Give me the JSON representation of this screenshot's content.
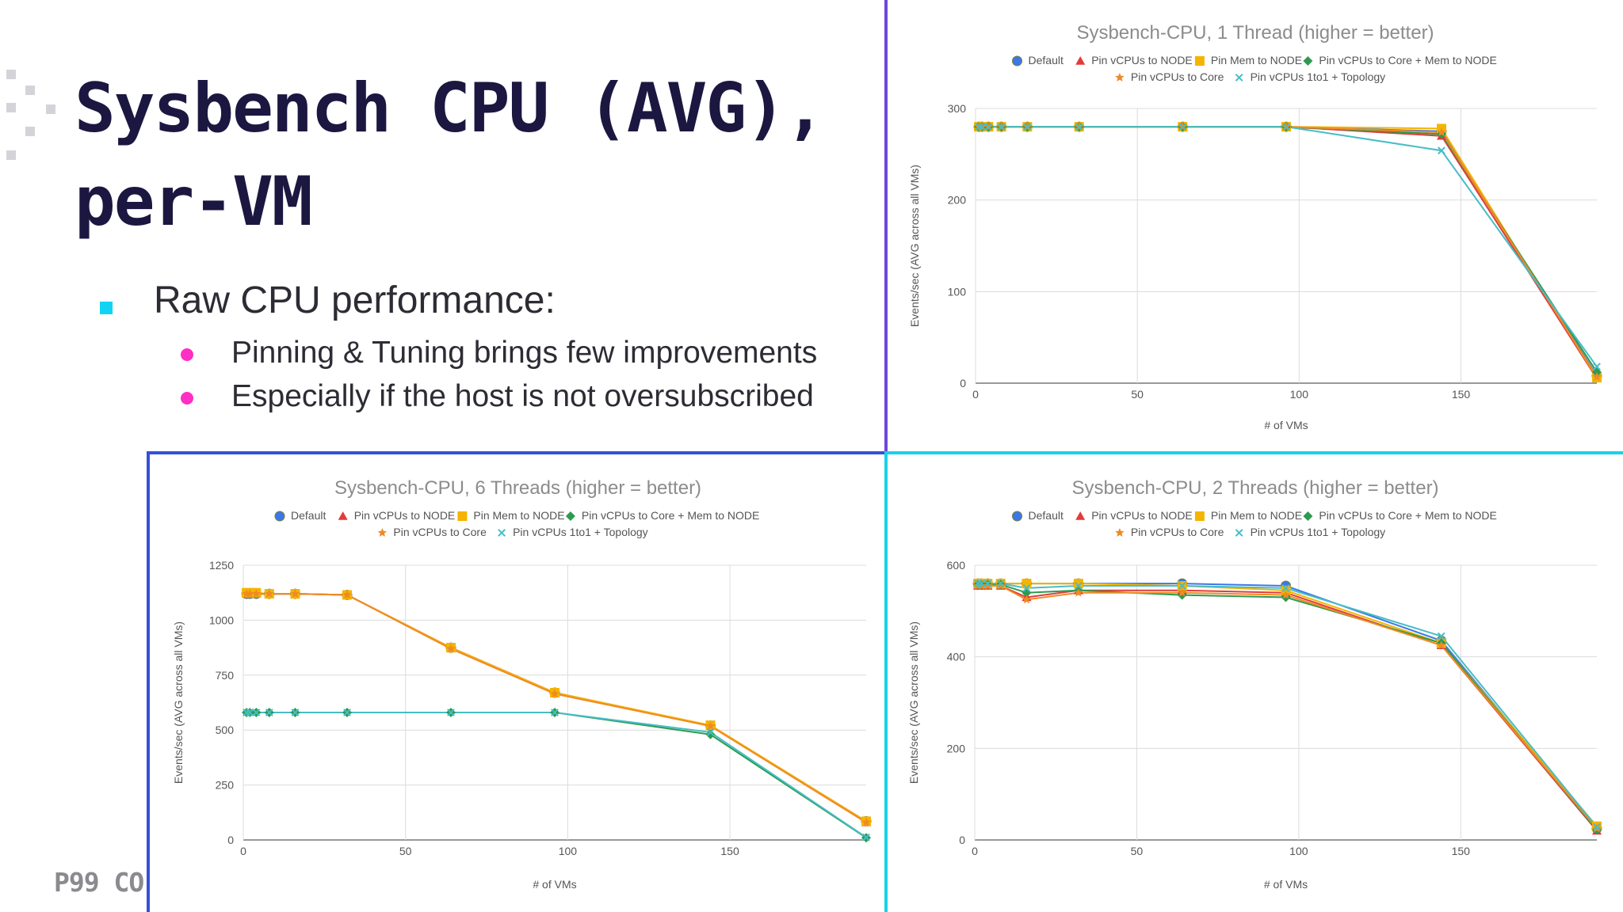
{
  "slide": {
    "title_lines": [
      "Sysbench CPU (AVG),",
      "per-VM"
    ],
    "bullet": "Raw CPU performance:",
    "sub_bullets": [
      "Pinning & Tuning brings few improvements",
      "Especially if the host is not oversubscribed"
    ],
    "footer": "P99 CO",
    "colors": {
      "title": "#1b1740",
      "bullet_square": "#11d4f5",
      "sub_bullet_dot": "#ff2ec4",
      "border_1thread": "#6b49dc",
      "border_6threads": "#3550d9",
      "border_2threads": "#19d1e6"
    }
  },
  "series_styles": [
    {
      "color": "#3b78e7",
      "marker": "circle-icon"
    },
    {
      "color": "#e23b3b",
      "marker": "triangle-icon"
    },
    {
      "color": "#f4b400",
      "marker": "square-icon"
    },
    {
      "color": "#2e9a4f",
      "marker": "diamond-icon"
    },
    {
      "color": "#f08a24",
      "marker": "star-icon"
    },
    {
      "color": "#46bdc6",
      "marker": "cross-icon"
    }
  ],
  "chart_data": [
    {
      "type": "line",
      "title": "Sysbench-CPU, 1 Thread (higher = better)",
      "xlabel": "# of VMs",
      "ylabel": "Events/sec (AVG across all VMs)",
      "xlim": [
        0,
        192
      ],
      "ylim": [
        0,
        300
      ],
      "xticks": [
        0,
        50,
        100,
        150
      ],
      "yticks": [
        0,
        100,
        200,
        300
      ],
      "grid": true,
      "legend_position": "top",
      "x": [
        1,
        2,
        4,
        8,
        16,
        32,
        64,
        96,
        144,
        192
      ],
      "series": [
        {
          "name": "Default",
          "values": [
            280,
            280,
            280,
            280,
            280,
            280,
            280,
            280,
            275,
            8
          ]
        },
        {
          "name": "Pin vCPUs to NODE",
          "values": [
            280,
            280,
            280,
            280,
            280,
            280,
            280,
            280,
            270,
            5
          ]
        },
        {
          "name": "Pin Mem to NODE",
          "values": [
            280,
            280,
            280,
            280,
            280,
            280,
            280,
            280,
            278,
            6
          ]
        },
        {
          "name": "Pin vCPUs to Core + Mem to NODE",
          "values": [
            280,
            280,
            280,
            280,
            280,
            280,
            280,
            280,
            272,
            12
          ]
        },
        {
          "name": "Pin vCPUs to Core",
          "values": [
            280,
            280,
            280,
            280,
            280,
            280,
            280,
            280,
            274,
            7
          ]
        },
        {
          "name": "Pin vCPUs 1to1 + Topology",
          "values": [
            280,
            280,
            280,
            280,
            280,
            280,
            280,
            280,
            254,
            18
          ]
        }
      ]
    },
    {
      "type": "line",
      "title": "Sysbench-CPU, 6 Threads (higher = better)",
      "xlabel": "# of VMs",
      "ylabel": "Events/sec (AVG across all VMs)",
      "xlim": [
        0,
        192
      ],
      "ylim": [
        0,
        1250
      ],
      "xticks": [
        0,
        50,
        100,
        150
      ],
      "yticks": [
        0,
        250,
        500,
        750,
        1000,
        1250
      ],
      "grid": true,
      "legend_position": "top",
      "x": [
        1,
        2,
        4,
        8,
        16,
        32,
        64,
        96,
        144,
        192
      ],
      "series": [
        {
          "name": "Default",
          "values": [
            1120,
            1120,
            1120,
            1120,
            1120,
            1115,
            875,
            670,
            520,
            85
          ]
        },
        {
          "name": "Pin vCPUs to NODE",
          "values": [
            1120,
            1120,
            1120,
            1120,
            1120,
            1115,
            875,
            670,
            520,
            80
          ]
        },
        {
          "name": "Pin Mem to NODE",
          "values": [
            1125,
            1125,
            1125,
            1120,
            1120,
            1115,
            875,
            670,
            522,
            85
          ]
        },
        {
          "name": "Pin vCPUs to Core + Mem to NODE",
          "values": [
            580,
            580,
            580,
            580,
            580,
            580,
            580,
            580,
            480,
            10
          ]
        },
        {
          "name": "Pin vCPUs to Core",
          "values": [
            1120,
            1120,
            1120,
            1120,
            1120,
            1115,
            870,
            665,
            518,
            80
          ]
        },
        {
          "name": "Pin vCPUs 1to1 + Topology",
          "values": [
            580,
            580,
            580,
            580,
            580,
            580,
            580,
            580,
            490,
            12
          ]
        }
      ]
    },
    {
      "type": "line",
      "title": "Sysbench-CPU, 2 Threads (higher = better)",
      "xlabel": "# of VMs",
      "ylabel": "Events/sec (AVG across all VMs)",
      "xlim": [
        0,
        192
      ],
      "ylim": [
        0,
        600
      ],
      "xticks": [
        0,
        50,
        100,
        150
      ],
      "yticks": [
        0,
        200,
        400,
        600
      ],
      "grid": true,
      "legend_position": "top",
      "x": [
        1,
        2,
        4,
        8,
        16,
        32,
        64,
        96,
        144,
        192
      ],
      "series": [
        {
          "name": "Default",
          "values": [
            560,
            560,
            560,
            560,
            560,
            560,
            560,
            555,
            435,
            25
          ]
        },
        {
          "name": "Pin vCPUs to NODE",
          "values": [
            555,
            555,
            555,
            555,
            530,
            545,
            545,
            540,
            425,
            20
          ]
        },
        {
          "name": "Pin Mem to NODE",
          "values": [
            560,
            560,
            560,
            560,
            560,
            560,
            555,
            545,
            430,
            30
          ]
        },
        {
          "name": "Pin vCPUs to Core + Mem to NODE",
          "values": [
            558,
            558,
            558,
            558,
            540,
            545,
            535,
            530,
            430,
            22
          ]
        },
        {
          "name": "Pin vCPUs to Core",
          "values": [
            555,
            555,
            555,
            555,
            525,
            540,
            540,
            535,
            425,
            25
          ]
        },
        {
          "name": "Pin vCPUs 1to1 + Topology",
          "values": [
            560,
            560,
            560,
            560,
            550,
            555,
            555,
            550,
            445,
            28
          ]
        }
      ]
    }
  ]
}
